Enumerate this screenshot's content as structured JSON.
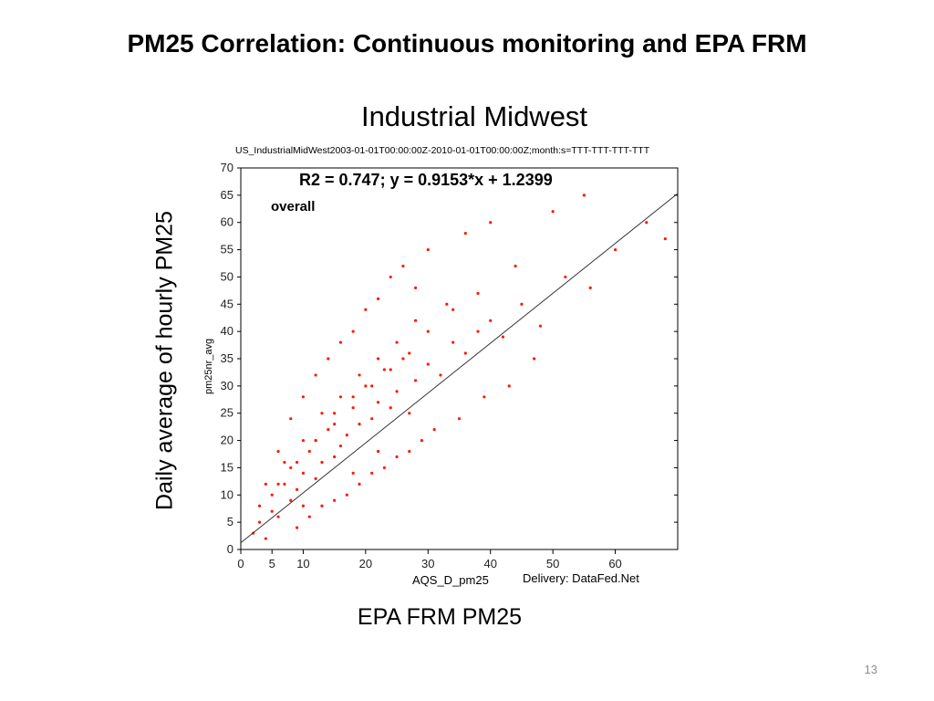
{
  "slide": {
    "title": "PM25  Correlation: Continuous monitoring and EPA FRM",
    "page_number": "13"
  },
  "chart_data": {
    "type": "scatter",
    "title": "Industrial Midwest",
    "subtitle": "US_IndustrialMidWest2003-01-01T00:00:00Z-2010-01-01T00:00:00Z;month:s=TTT-TTT-TTT-TTT",
    "annotation": "R2 = 0.747; y = 0.9153*x + 1.2399",
    "group_label": "overall",
    "outer_ylabel": "Daily average of hourly PM25",
    "outer_xlabel": "EPA FRM PM25",
    "ylabel": "pm25nr_avg",
    "xlabel": "AQS_D_pm25",
    "credit": "Delivery: DataFed.Net",
    "xlim": [
      0,
      70
    ],
    "ylim": [
      0,
      70
    ],
    "xticks": [
      0,
      5,
      10,
      20,
      30,
      40,
      50,
      60
    ],
    "yticks": [
      0,
      5,
      10,
      15,
      20,
      25,
      30,
      35,
      40,
      45,
      50,
      55,
      60,
      65,
      70
    ],
    "grid": false,
    "point_color": "#ff1a00",
    "line_color": "#333333",
    "fit": {
      "slope": 0.9153,
      "intercept": 1.2399,
      "r2": 0.747
    },
    "series": [
      {
        "x": [
          2,
          3,
          4,
          5,
          5,
          6,
          7,
          8,
          8,
          9,
          10,
          10,
          11,
          12,
          12,
          13,
          14,
          15,
          15,
          16,
          17,
          18,
          18,
          19,
          20,
          21,
          22,
          22,
          23,
          24,
          25,
          26,
          27,
          28,
          30,
          32,
          34,
          36,
          38,
          40,
          42,
          45,
          48,
          52,
          56,
          60,
          65,
          68,
          6,
          8,
          10,
          12,
          14,
          16,
          18,
          20,
          22,
          24,
          26,
          28,
          30,
          33,
          36,
          40,
          44,
          50,
          55,
          9,
          11,
          13,
          15,
          17,
          19,
          21,
          23,
          25,
          27,
          29,
          31,
          35,
          39,
          43,
          47,
          4,
          7,
          10,
          13,
          16,
          19,
          22,
          25,
          28,
          3,
          6,
          9,
          12,
          15,
          18,
          21,
          24,
          27,
          30,
          34,
          38
        ],
        "y": [
          3,
          5,
          2,
          7,
          10,
          6,
          12,
          9,
          15,
          11,
          14,
          8,
          18,
          13,
          20,
          16,
          22,
          17,
          25,
          19,
          21,
          28,
          14,
          23,
          30,
          24,
          27,
          18,
          33,
          26,
          29,
          35,
          25,
          31,
          34,
          32,
          38,
          36,
          40,
          42,
          39,
          45,
          41,
          50,
          48,
          55,
          60,
          57,
          18,
          24,
          28,
          32,
          35,
          38,
          40,
          44,
          46,
          50,
          52,
          48,
          55,
          45,
          58,
          60,
          52,
          62,
          65,
          4,
          6,
          8,
          9,
          10,
          12,
          14,
          15,
          17,
          18,
          20,
          22,
          24,
          28,
          30,
          35,
          12,
          16,
          20,
          25,
          28,
          32,
          35,
          38,
          42,
          8,
          12,
          16,
          20,
          23,
          26,
          30,
          33,
          36,
          40,
          44,
          47
        ]
      }
    ]
  }
}
